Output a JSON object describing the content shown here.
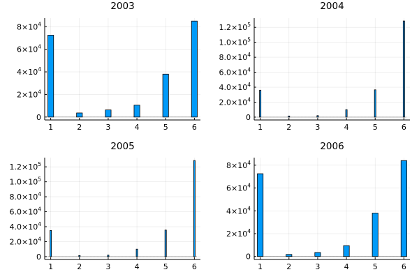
{
  "chart_data": [
    {
      "type": "bar",
      "title": "2003",
      "x": [
        1,
        2,
        3,
        4,
        5,
        6
      ],
      "values": [
        72500,
        3600,
        6300,
        10500,
        38000,
        85000
      ],
      "xticks": [
        "1",
        "2",
        "3",
        "4",
        "5",
        "6"
      ],
      "yticks": [
        {
          "value": 0,
          "mant": "0",
          "exp": ""
        },
        {
          "value": 20000,
          "mant": "2×10",
          "exp": "4"
        },
        {
          "value": 40000,
          "mant": "4×10",
          "exp": "4"
        },
        {
          "value": 60000,
          "mant": "6×10",
          "exp": "4"
        },
        {
          "value": 80000,
          "mant": "8×10",
          "exp": "4"
        }
      ],
      "ylim": [
        -2600,
        87600
      ],
      "bar_width": 0.2,
      "color": "#009AF9",
      "grid": true
    },
    {
      "type": "bar",
      "title": "2004",
      "x": [
        1,
        2,
        3,
        4,
        5,
        6
      ],
      "values": [
        36000,
        1500,
        2000,
        10000,
        36500,
        128500
      ],
      "xticks": [
        "1",
        "2",
        "3",
        "4",
        "5",
        "6"
      ],
      "yticks": [
        {
          "value": 0,
          "mant": "0",
          "exp": ""
        },
        {
          "value": 20000,
          "mant": "2.0×10",
          "exp": "4"
        },
        {
          "value": 40000,
          "mant": "4.0×10",
          "exp": "4"
        },
        {
          "value": 60000,
          "mant": "6.0×10",
          "exp": "4"
        },
        {
          "value": 80000,
          "mant": "8.0×10",
          "exp": "4"
        },
        {
          "value": 100000,
          "mant": "1.0×10",
          "exp": "5"
        },
        {
          "value": 120000,
          "mant": "1.2×10",
          "exp": "5"
        }
      ],
      "ylim": [
        -3800,
        132300
      ],
      "bar_width": 0.05,
      "color": "#009AF9",
      "grid": true
    },
    {
      "type": "bar",
      "title": "2005",
      "x": [
        1,
        2,
        3,
        4,
        5,
        6
      ],
      "values": [
        35000,
        1500,
        2000,
        10000,
        35500,
        128500
      ],
      "xticks": [
        "1",
        "2",
        "3",
        "4",
        "5",
        "6"
      ],
      "yticks": [
        {
          "value": 0,
          "mant": "0",
          "exp": ""
        },
        {
          "value": 20000,
          "mant": "2.0×10",
          "exp": "4"
        },
        {
          "value": 40000,
          "mant": "4.0×10",
          "exp": "4"
        },
        {
          "value": 60000,
          "mant": "6.0×10",
          "exp": "4"
        },
        {
          "value": 80000,
          "mant": "8.0×10",
          "exp": "4"
        },
        {
          "value": 100000,
          "mant": "1.0×10",
          "exp": "5"
        },
        {
          "value": 120000,
          "mant": "1.2×10",
          "exp": "5"
        }
      ],
      "ylim": [
        -3800,
        132300
      ],
      "bar_width": 0.05,
      "color": "#009AF9",
      "grid": true
    },
    {
      "type": "bar",
      "title": "2006",
      "x": [
        1,
        2,
        3,
        4,
        5,
        6
      ],
      "values": [
        72500,
        1800,
        3500,
        9500,
        38000,
        84000
      ],
      "xticks": [
        "1",
        "2",
        "3",
        "4",
        "5",
        "6"
      ],
      "yticks": [
        {
          "value": 0,
          "mant": "0",
          "exp": ""
        },
        {
          "value": 20000,
          "mant": "2×10",
          "exp": "4"
        },
        {
          "value": 40000,
          "mant": "4×10",
          "exp": "4"
        },
        {
          "value": 60000,
          "mant": "6×10",
          "exp": "4"
        },
        {
          "value": 80000,
          "mant": "8×10",
          "exp": "4"
        }
      ],
      "ylim": [
        -2600,
        86600
      ],
      "bar_width": 0.2,
      "color": "#009AF9",
      "grid": true
    }
  ]
}
